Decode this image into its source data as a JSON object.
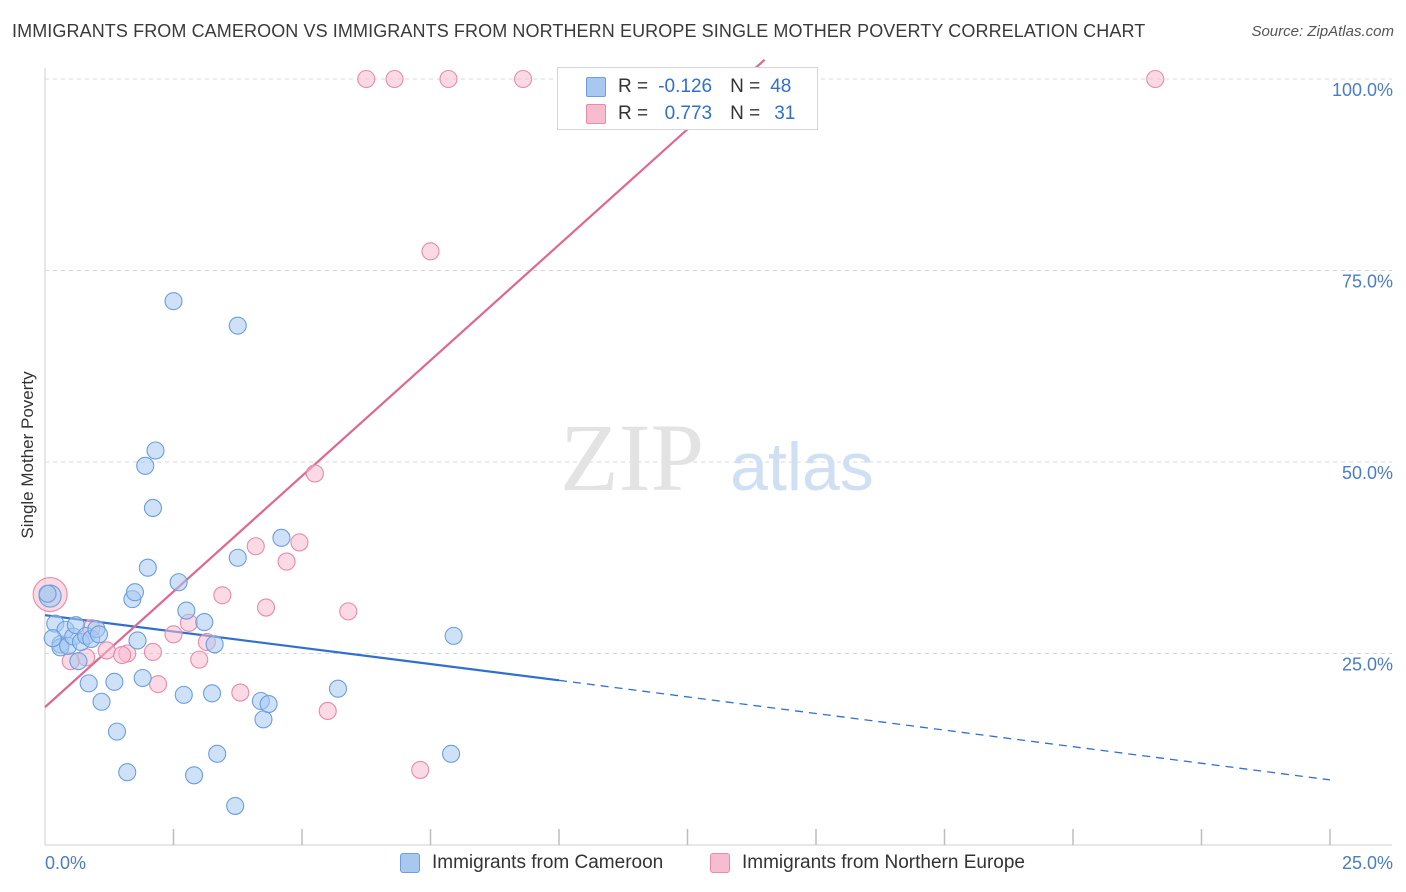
{
  "title": "IMMIGRANTS FROM CAMEROON VS IMMIGRANTS FROM NORTHERN EUROPE SINGLE MOTHER POVERTY CORRELATION CHART",
  "source": "Source: ZipAtlas.com",
  "watermark": {
    "zip": "ZIP",
    "atlas": "atlas"
  },
  "stats_legend": {
    "rows": [
      {
        "r_label": "R =",
        "r_value": "-0.126",
        "n_label": "N =",
        "n_value": "48",
        "color": "#a8c8f0",
        "border": "#6a9ee0"
      },
      {
        "r_label": "R =",
        "r_value": "0.773",
        "n_label": "N =",
        "n_value": "31",
        "color": "#f8bcd0",
        "border": "#e88aa8"
      }
    ]
  },
  "colors": {
    "cameroon_fill": "#a8c8f0",
    "cameroon_stroke": "#6a9ee0",
    "cameroon_line": "#2f6fd1",
    "northern_europe_fill": "#f8bcd0",
    "northern_europe_stroke": "#e88aa8",
    "northern_europe_line": "#e06890",
    "tick_text": "#4a7cc7",
    "grid": "#d8d8d8"
  },
  "chart_data": {
    "type": "scatter",
    "title": "IMMIGRANTS FROM CAMEROON VS IMMIGRANTS FROM NORTHERN EUROPE SINGLE MOTHER POVERTY CORRELATION CHART",
    "xlabel": "",
    "ylabel": "Single Mother Poverty",
    "xlim": [
      0,
      25
    ],
    "ylim": [
      0,
      100
    ],
    "x_tick_labels": [
      "0.0%",
      "25.0%"
    ],
    "y_ticks": [
      25,
      50,
      75,
      100
    ],
    "y_tick_labels": [
      "25.0%",
      "50.0%",
      "75.0%",
      "100.0%"
    ],
    "grid": true,
    "legend": "bottom",
    "series": [
      {
        "name": "Immigrants from Cameroon",
        "points": [
          [
            0.1,
            32.5
          ],
          [
            0.2,
            28.9
          ],
          [
            0.3,
            26.2
          ],
          [
            0.3,
            25.8
          ],
          [
            0.4,
            28.1
          ],
          [
            0.45,
            26.0
          ],
          [
            0.55,
            27.2
          ],
          [
            0.6,
            28.7
          ],
          [
            0.65,
            24.0
          ],
          [
            0.7,
            26.5
          ],
          [
            0.8,
            27.3
          ],
          [
            0.85,
            21.1
          ],
          [
            0.9,
            26.9
          ],
          [
            1.0,
            28.2
          ],
          [
            1.05,
            27.5
          ],
          [
            1.1,
            18.7
          ],
          [
            1.4,
            14.8
          ],
          [
            1.35,
            21.3
          ],
          [
            1.6,
            9.5
          ],
          [
            1.7,
            32.1
          ],
          [
            1.75,
            33.0
          ],
          [
            1.8,
            26.7
          ],
          [
            1.9,
            21.8
          ],
          [
            1.95,
            49.5
          ],
          [
            2.0,
            36.2
          ],
          [
            2.15,
            51.5
          ],
          [
            2.1,
            44.0
          ],
          [
            2.5,
            71.0
          ],
          [
            2.6,
            34.3
          ],
          [
            2.7,
            19.6
          ],
          [
            2.75,
            30.6
          ],
          [
            2.9,
            9.1
          ],
          [
            3.1,
            29.1
          ],
          [
            3.25,
            19.8
          ],
          [
            3.3,
            26.2
          ],
          [
            3.35,
            11.9
          ],
          [
            3.7,
            5.1
          ],
          [
            3.75,
            37.5
          ],
          [
            3.75,
            67.8
          ],
          [
            4.2,
            18.8
          ],
          [
            4.25,
            16.4
          ],
          [
            4.35,
            18.4
          ],
          [
            4.6,
            40.1
          ],
          [
            5.7,
            20.4
          ],
          [
            7.9,
            11.9
          ],
          [
            7.95,
            27.3
          ],
          [
            0.05,
            32.8
          ],
          [
            0.15,
            27.0
          ]
        ]
      },
      {
        "name": "Immigrants from Northern Europe",
        "points": [
          [
            0.1,
            32.7
          ],
          [
            0.8,
            24.5
          ],
          [
            1.2,
            25.4
          ],
          [
            1.6,
            25.0
          ],
          [
            2.1,
            25.2
          ],
          [
            2.2,
            21.0
          ],
          [
            2.5,
            27.5
          ],
          [
            2.8,
            29.0
          ],
          [
            3.0,
            24.2
          ],
          [
            3.15,
            26.5
          ],
          [
            3.45,
            32.6
          ],
          [
            3.8,
            19.9
          ],
          [
            4.1,
            39.0
          ],
          [
            4.3,
            31.0
          ],
          [
            4.7,
            37.0
          ],
          [
            4.95,
            39.5
          ],
          [
            5.25,
            48.5
          ],
          [
            5.5,
            17.5
          ],
          [
            5.9,
            30.5
          ],
          [
            6.25,
            100.0
          ],
          [
            6.8,
            100.0
          ],
          [
            7.3,
            9.8
          ],
          [
            7.5,
            77.5
          ],
          [
            7.85,
            100.0
          ],
          [
            9.3,
            100.0
          ],
          [
            10.2,
            100.0
          ],
          [
            12.0,
            100.0
          ],
          [
            21.6,
            100.0
          ],
          [
            0.9,
            28.3
          ],
          [
            1.5,
            24.8
          ],
          [
            0.5,
            24.0
          ]
        ]
      }
    ],
    "trend_lines": [
      {
        "series": "Immigrants from Cameroon",
        "solid": [
          [
            0,
            30.0
          ],
          [
            10,
            21.5
          ]
        ],
        "dashed": [
          [
            10,
            21.5
          ],
          [
            25,
            8.5
          ]
        ]
      },
      {
        "series": "Immigrants from Northern Europe",
        "solid": [
          [
            0,
            18.0
          ],
          [
            14,
            102.5
          ]
        ]
      }
    ]
  }
}
